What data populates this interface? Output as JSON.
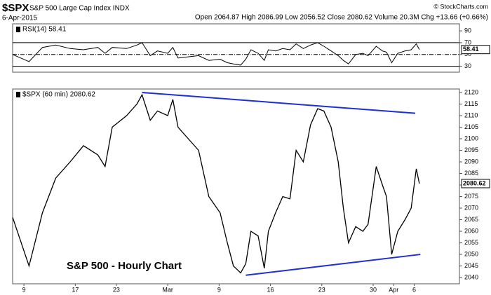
{
  "header": {
    "symbol": "$SPX",
    "name": "S&P 500 Large Cap Index INDX",
    "date": "6-Apr-2015",
    "quote": "Open 2064.87 High 2086.99 Low 2056.52 Close 2080.62 Volume 20.3M Chg +13.66 (+0.66%)",
    "copyright": "© StockCharts.com"
  },
  "chart_data": [
    {
      "type": "line",
      "name": "RSI(14) 58.41",
      "last_label": "58.41",
      "color": "#000000",
      "x": [
        -1.1,
        0.5,
        1.8,
        3.1,
        4.5,
        5.8,
        7.2,
        7.9,
        8.6,
        10,
        11,
        11.5,
        12.3,
        13,
        14,
        14.5,
        15,
        16,
        17,
        18,
        19.1,
        19.8,
        20.4,
        21.1,
        21.6,
        22.1,
        22.8,
        23.4,
        23.8,
        24.5,
        25.2,
        25.9,
        26.5,
        27.2,
        27.9,
        28.6,
        29.2,
        29.9,
        30.6,
        31.1,
        31.6,
        32.3,
        33,
        33.5,
        34.3,
        34.9,
        35.3,
        35.8,
        36.4,
        37.1,
        37.7,
        38.2,
        38.5
      ],
      "values": [
        50,
        38,
        62,
        66,
        60,
        58,
        62,
        52,
        62,
        60,
        66,
        70,
        48,
        56,
        52,
        62,
        44,
        46,
        48,
        40,
        42,
        36,
        34,
        32,
        42,
        58,
        52,
        40,
        58,
        56,
        60,
        58,
        68,
        60,
        66,
        70,
        64,
        56,
        48,
        40,
        34,
        50,
        52,
        48,
        64,
        56,
        54,
        36,
        52,
        56,
        58,
        68,
        58.41
      ],
      "xlim": [
        -1.1,
        42.4
      ],
      "ylim": [
        20,
        102
      ],
      "yticks": [
        90,
        70,
        50,
        30
      ],
      "level_lines": [
        70,
        30
      ],
      "mid_line": 50
    },
    {
      "type": "line",
      "name": "$SPX (60 min) 2080.62",
      "last_label": "2080.62",
      "color": "#000000",
      "annotation": "S&P 500 - Hourly Chart",
      "x": [
        -1.1,
        0.5,
        1.8,
        3.1,
        4.5,
        5.8,
        7.2,
        7.9,
        8.6,
        10,
        11,
        11.5,
        12.3,
        13,
        14,
        14.5,
        15,
        16,
        17,
        18,
        19.1,
        19.8,
        20.4,
        21.1,
        21.6,
        22.1,
        22.8,
        23.4,
        23.8,
        24.5,
        25.2,
        25.9,
        26.5,
        27.2,
        27.9,
        28.6,
        29.2,
        29.9,
        30.6,
        31.1,
        31.6,
        32.3,
        33,
        33.5,
        34.3,
        34.9,
        35.3,
        35.8,
        36.4,
        37.1,
        37.7,
        38.2,
        38.5
      ],
      "values": [
        2066,
        2045,
        2068,
        2083,
        2090,
        2097,
        2093,
        2088,
        2105,
        2110,
        2115,
        2119,
        2108,
        2112,
        2110,
        2117,
        2105,
        2100,
        2095,
        2075,
        2068,
        2055,
        2045,
        2042,
        2046,
        2060,
        2058,
        2044,
        2060,
        2068,
        2075,
        2074,
        2095,
        2090,
        2106,
        2113,
        2112,
        2105,
        2090,
        2070,
        2055,
        2062,
        2060,
        2063,
        2088,
        2080,
        2075,
        2050,
        2060,
        2065,
        2070,
        2087,
        2080.62
      ],
      "xlim": [
        -1.1,
        42.4
      ],
      "ylim": [
        2037.3,
        2121.5
      ],
      "yticks": [
        2040,
        2045,
        2050,
        2055,
        2060,
        2065,
        2070,
        2075,
        2080,
        2085,
        2090,
        2095,
        2100,
        2105,
        2110,
        2115,
        2120
      ],
      "xticks": [
        {
          "value": 0,
          "label": "9"
        },
        {
          "value": 5,
          "label": "17"
        },
        {
          "value": 9,
          "label": "23"
        },
        {
          "value": 14,
          "label": "Mar"
        },
        {
          "value": 19,
          "label": "9"
        },
        {
          "value": 24,
          "label": "16"
        },
        {
          "value": 29,
          "label": "23"
        },
        {
          "value": 34,
          "label": "30"
        },
        {
          "value": 36,
          "label": "Apr"
        },
        {
          "value": 38,
          "label": "6"
        }
      ],
      "trendlines": [
        {
          "color": "#1f2fd0",
          "x": [
            11.5,
            38.1
          ],
          "y": [
            2120,
            2111
          ]
        },
        {
          "color": "#1f2fd0",
          "x": [
            21.6,
            38.6
          ],
          "y": [
            2041,
            2050
          ]
        }
      ]
    }
  ]
}
